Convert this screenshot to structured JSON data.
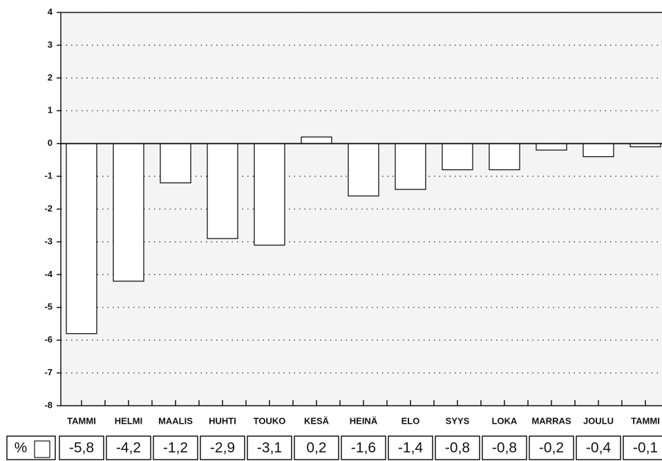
{
  "chart_data": {
    "type": "bar",
    "categories": [
      "TAMMI",
      "HELMI",
      "MAALIS",
      "HUHTI",
      "TOUKO",
      "KESÄ",
      "HEINÄ",
      "ELO",
      "SYYS",
      "LOKA",
      "MARRAS",
      "JOULU",
      "TAMMI"
    ],
    "values": [
      -5.8,
      -4.2,
      -1.2,
      -2.9,
      -3.1,
      0.2,
      -1.6,
      -1.4,
      -0.8,
      -0.8,
      -0.2,
      -0.4,
      -0.1
    ],
    "value_labels": [
      "-5,8",
      "-4,2",
      "-1,2",
      "-2,9",
      "-3,1",
      "0,2",
      "-1,6",
      "-1,4",
      "-0,8",
      "-0,8",
      "-0,2",
      "-0,4",
      "-0,1"
    ],
    "table_unit": "%",
    "color": "#ffffff",
    "ylim": [
      -8,
      4
    ],
    "yticks": [
      4,
      3,
      2,
      1,
      0,
      -1,
      -2,
      -3,
      -4,
      -5,
      -6,
      -7,
      -8
    ],
    "grid": true
  }
}
